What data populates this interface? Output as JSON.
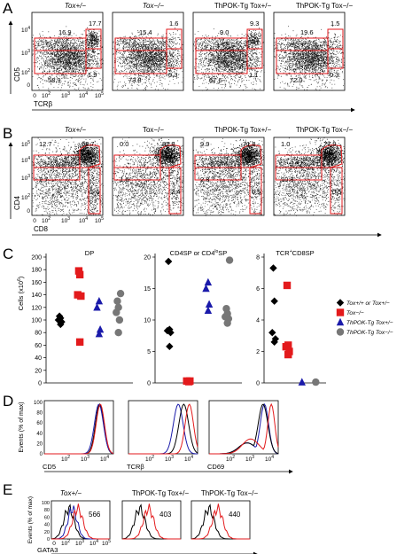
{
  "panel_letters": [
    "A",
    "B",
    "C",
    "D",
    "E"
  ],
  "row_a": {
    "headers": [
      "Tox+/−",
      "Tox−/−",
      "ThPOK-Tg Tox+/−",
      "ThPOK-Tg Tox−/−"
    ],
    "y_axis_label": "CD5",
    "x_axis_label": "TCRβ",
    "y_ticks": [
      "10^4",
      "10^3",
      "10^2",
      "0"
    ],
    "x_ticks": [
      "0",
      "10^2",
      "10^3",
      "10^4",
      "10^5"
    ],
    "gate_values": [
      [
        "16.9",
        "17.7",
        "58.9",
        "1.9"
      ],
      [
        "15.4",
        "1.6",
        "73.8",
        "0.3"
      ],
      [
        "9.0",
        "9.3",
        "67.6",
        "1.1"
      ],
      [
        "19.6",
        "1.5",
        "72.0",
        "0.3"
      ]
    ]
  },
  "row_b": {
    "headers": [
      "Tox+/−",
      "Tox−/−",
      "ThPOK-Tg Tox+/−",
      "ThPOK-Tg Tox−/−"
    ],
    "y_axis_label": "CD4",
    "x_axis_label": "CD8",
    "y_ticks": [
      "10^5",
      "10^4",
      "10^3",
      "10^2",
      "0"
    ],
    "x_ticks": [
      "0",
      "10^2",
      "10^3",
      "10^4",
      "10^5"
    ],
    "gate_values": [
      [
        "12.7",
        "68.7",
        "2.7",
        "5.6"
      ],
      [
        "0.0",
        "82.8",
        "1.6",
        "2.4"
      ],
      [
        "9.9",
        "71.8",
        "2.8",
        "0.5"
      ],
      [
        "1.0",
        "77.9",
        "10.8",
        "0.5"
      ]
    ]
  },
  "chart_data": [
    {
      "type": "scatter",
      "title": "DP",
      "ylabel": "Cells (x10^6)",
      "ylim": [
        0,
        200
      ],
      "y_ticks": [
        0,
        20,
        40,
        60,
        80,
        100,
        120,
        140,
        160,
        180,
        200
      ],
      "series": [
        {
          "name": "Tox+/+ or Tox+/−",
          "color": "#000000",
          "marker": "diamond",
          "values": [
            93,
            97,
            100,
            103,
            106
          ]
        },
        {
          "name": "Tox−/−",
          "color": "#e31a1c",
          "marker": "square",
          "values": [
            65,
            138,
            140,
            172,
            178
          ]
        },
        {
          "name": "ThPOK-Tg Tox+/−",
          "color": "#1a1aaa",
          "marker": "triangle",
          "values": [
            78,
            85,
            120,
            130
          ]
        },
        {
          "name": "ThPOK-Tg Tox−/−",
          "color": "#777777",
          "marker": "circle",
          "values": [
            80,
            100,
            112,
            120,
            130,
            142
          ]
        }
      ]
    },
    {
      "type": "scatter",
      "title": "CD4SP or CD4loSP",
      "ylim": [
        0,
        20
      ],
      "y_ticks": [
        0,
        5,
        10,
        15,
        20
      ],
      "series": [
        {
          "name": "Tox+/+ or Tox+/−",
          "color": "#000000",
          "marker": "diamond",
          "values": [
            5.8,
            8.0,
            8.3,
            8.5,
            19.3
          ]
        },
        {
          "name": "Tox−/−",
          "color": "#e31a1c",
          "marker": "square",
          "values": [
            0.2,
            0.3,
            0.3
          ]
        },
        {
          "name": "ThPOK-Tg Tox+/−",
          "color": "#1a1aaa",
          "marker": "triangle",
          "values": [
            11.5,
            12.5,
            15.0,
            16.0
          ]
        },
        {
          "name": "ThPOK-Tg Tox−/−",
          "color": "#777777",
          "marker": "circle",
          "values": [
            9.5,
            10.2,
            10.5,
            11.0,
            11.8,
            19.5
          ]
        }
      ]
    },
    {
      "type": "scatter",
      "title": "TCR+CD8SP",
      "ylim": [
        0,
        8
      ],
      "y_ticks": [
        0,
        2,
        4,
        6,
        8
      ],
      "series": [
        {
          "name": "Tox+/+ or Tox+/−",
          "color": "#000000",
          "marker": "diamond",
          "values": [
            2.6,
            2.8,
            3.2,
            5.2,
            7.3
          ]
        },
        {
          "name": "Tox−/−",
          "color": "#e31a1c",
          "marker": "square",
          "values": [
            1.8,
            2.0,
            2.3,
            2.4,
            6.2
          ]
        },
        {
          "name": "ThPOK-Tg Tox+/−",
          "color": "#1a1aaa",
          "marker": "triangle",
          "values": [
            0.05
          ]
        },
        {
          "name": "ThPOK-Tg Tox−/−",
          "color": "#777777",
          "marker": "circle",
          "values": [
            0.05
          ]
        }
      ]
    }
  ],
  "legend_c": [
    "Tox+/+ or Tox+/−",
    "Tox−/−",
    "ThPOK-Tg Tox+/−",
    "ThPOK-Tg Tox−/−"
  ],
  "row_d": {
    "y_axis_label": "Events (% of max)",
    "y_ticks": [
      "100",
      "80",
      "60",
      "40",
      "20",
      "0"
    ],
    "x_labels": [
      "CD5",
      "TCRβ",
      "CD69"
    ],
    "x_ticks": [
      "10^2",
      "10^3",
      "10^4"
    ]
  },
  "row_e": {
    "y_axis_label": "Events (% of max)",
    "x_axis_label": "GATA3",
    "headers": [
      "Tox+/−",
      "ThPOK-Tg Tox+/−",
      "ThPOK-Tg Tox−/−"
    ],
    "values": [
      "566",
      "403",
      "440"
    ],
    "y_ticks": [
      "100",
      "80",
      "60",
      "40",
      "20",
      "0"
    ],
    "x_ticks": [
      "0",
      "10^2",
      "10^3",
      "10^4",
      "10^5"
    ]
  }
}
